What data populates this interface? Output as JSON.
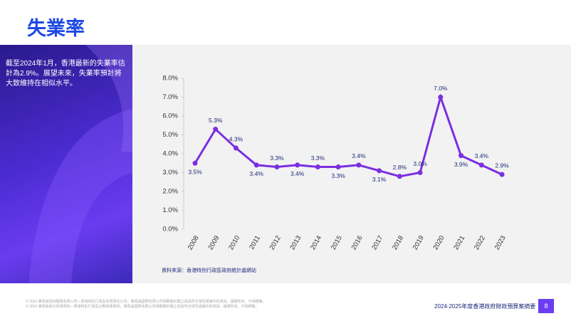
{
  "chart_data": {
    "type": "line",
    "title": "失業率",
    "note": "截至2024年1月，香港最新的失業率估計為2.9%。展望未來，失業率預計將大致維持在相似水平。",
    "source": "資料來源：香港特別行政區政府統計處網站",
    "footer": "2024-2025年度香港政府財政預算案摘要",
    "page": "8",
    "legal": [
      "© 2024 畢馬威諮詢服務有限公司—香港特別行政區有限責任公司，畢馬威國際有限公司相關聯的獨立成員所全球性組織中的成員。版權所有，不得轉載。",
      "© 2024 畢馬威會計師事務所—香港特別行政區合夥制事務所，畢馬威國際有限公司相關聯的獨立成員所全球性組織中的成員。版權所有，不得轉載。"
    ],
    "categories": [
      "2008",
      "2009",
      "2010",
      "2011",
      "2012",
      "2013",
      "2014",
      "2015",
      "2016",
      "2017",
      "2018",
      "2019",
      "2020",
      "2021",
      "2022",
      "2023"
    ],
    "series": [
      {
        "name": "失業率",
        "color": "#7b2fe0",
        "values": [
          3.5,
          5.3,
          4.3,
          3.4,
          3.3,
          3.4,
          3.3,
          3.3,
          3.4,
          3.1,
          2.8,
          3.0,
          7.0,
          3.9,
          3.4,
          2.9
        ],
        "value_labels": [
          "3.5%",
          "5.3%",
          "4.3%",
          "3.4%",
          "3.3%",
          "3.4%",
          "3.3%",
          "3.3%",
          "3.4%",
          "3.1%",
          "2.8%",
          "3.0%",
          "7.0%",
          "3.9%",
          "3.4%",
          "2.9%"
        ]
      }
    ],
    "ylim": [
      0,
      8
    ],
    "yticks": [
      {
        "value": 0,
        "label": "0.0%"
      },
      {
        "value": 1,
        "label": "1.0%"
      },
      {
        "value": 2,
        "label": "2.0%"
      },
      {
        "value": 3,
        "label": "3.0%"
      },
      {
        "value": 4,
        "label": "4.0%"
      },
      {
        "value": 5,
        "label": "5.0%"
      },
      {
        "value": 6,
        "label": "6.0%"
      },
      {
        "value": 7,
        "label": "7.0%"
      },
      {
        "value": 8,
        "label": "8.0%"
      }
    ],
    "grid": false
  }
}
